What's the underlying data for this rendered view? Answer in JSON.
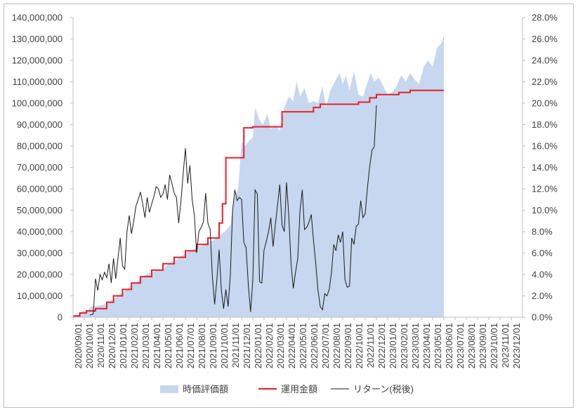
{
  "chart_data": {
    "type": "area+line",
    "title": "",
    "legend_position": "bottom",
    "gridlines": false,
    "left_axis": {
      "min": 0,
      "max": 140000000,
      "step": 10000000,
      "tick_labels": [
        "0",
        "10,000,000",
        "20,000,000",
        "30,000,000",
        "40,000,000",
        "50,000,000",
        "60,000,000",
        "70,000,000",
        "80,000,000",
        "90,000,000",
        "100,000,000",
        "110,000,000",
        "120,000,000",
        "130,000,000",
        "140,000,000"
      ]
    },
    "right_axis": {
      "min": 0,
      "max": 28,
      "step": 2,
      "unit": "%",
      "tick_labels": [
        "0.0%",
        "2.0%",
        "4.0%",
        "6.0%",
        "8.0%",
        "10.0%",
        "12.0%",
        "14.0%",
        "16.0%",
        "18.0%",
        "20.0%",
        "22.0%",
        "24.0%",
        "26.0%",
        "28.0%"
      ]
    },
    "x_axis": {
      "tick_labels": [
        "2020/09/01",
        "2020/10/01",
        "2020/11/01",
        "2020/12/01",
        "2021/01/01",
        "2021/02/01",
        "2021/03/01",
        "2021/04/01",
        "2021/05/01",
        "2021/06/01",
        "2021/07/01",
        "2021/08/01",
        "2021/09/01",
        "2021/10/01",
        "2021/11/01",
        "2021/12/01",
        "2022/01/01",
        "2022/02/01",
        "2022/03/01",
        "2022/04/01",
        "2022/05/01",
        "2022/06/01",
        "2022/07/01",
        "2022/08/01",
        "2022/09/01",
        "2022/10/01",
        "2022/11/01",
        "2022/12/01",
        "2023/01/01",
        "2023/02/01",
        "2023/03/01",
        "2023/04/01",
        "2023/05/01",
        "2023/06/01",
        "2023/07/01",
        "2023/08/01",
        "2023/09/01",
        "2023/10/01",
        "2023/11/01",
        "2023/12/01"
      ]
    },
    "colors": {
      "market_value": "#c6d7ef",
      "invested": "#e8202a",
      "return": "#1a1a1a",
      "axis": "#bfbfbf",
      "text": "#404040"
    },
    "series": [
      {
        "name": "時価評価額",
        "type": "area",
        "axis": "left",
        "points": [
          [
            0,
            1000000
          ],
          [
            0.5,
            1000000
          ],
          [
            0.9,
            3200000
          ],
          [
            1.3,
            3200000
          ],
          [
            1.6,
            5000000
          ],
          [
            2.2,
            5300000
          ],
          [
            2.8,
            6000000
          ],
          [
            3.2,
            7000000
          ],
          [
            3.6,
            8500000
          ],
          [
            4.0,
            10000000
          ],
          [
            4.4,
            11500000
          ],
          [
            4.8,
            13000000
          ],
          [
            5.2,
            15000000
          ],
          [
            5.6,
            16500000
          ],
          [
            6.0,
            18000000
          ],
          [
            6.5,
            20000000
          ],
          [
            7.0,
            21000000
          ],
          [
            7.5,
            22000000
          ],
          [
            8.0,
            22500000
          ],
          [
            8.5,
            25000000
          ],
          [
            9.0,
            26000000
          ],
          [
            9.5,
            28000000
          ],
          [
            10.0,
            30000000
          ],
          [
            10.5,
            31000000
          ],
          [
            11.0,
            33000000
          ],
          [
            11.5,
            33500000
          ],
          [
            12.0,
            35000000
          ],
          [
            12.5,
            36000000
          ],
          [
            13.0,
            38000000
          ],
          [
            13.5,
            40000000
          ],
          [
            14.0,
            43000000
          ],
          [
            14.3,
            55000000
          ],
          [
            14.7,
            60000000
          ],
          [
            15.0,
            82000000
          ],
          [
            15.3,
            80000000
          ],
          [
            15.6,
            82000000
          ],
          [
            16.0,
            84000000
          ],
          [
            16.2,
            98000000
          ],
          [
            16.6,
            92000000
          ],
          [
            16.9,
            90000000
          ],
          [
            17.3,
            95000000
          ],
          [
            17.6,
            88000000
          ],
          [
            18.0,
            90000000
          ],
          [
            18.4,
            87000000
          ],
          [
            18.8,
            98000000
          ],
          [
            19.2,
            103000000
          ],
          [
            19.6,
            101000000
          ],
          [
            19.9,
            110000000
          ],
          [
            20.2,
            103000000
          ],
          [
            20.6,
            107000000
          ],
          [
            21.0,
            100000000
          ],
          [
            21.4,
            101000000
          ],
          [
            21.8,
            100000000
          ],
          [
            22.2,
            108000000
          ],
          [
            22.5,
            98000000
          ],
          [
            22.9,
            106000000
          ],
          [
            23.3,
            110000000
          ],
          [
            23.7,
            114000000
          ],
          [
            24.0,
            109000000
          ],
          [
            24.3,
            113000000
          ],
          [
            24.6,
            106000000
          ],
          [
            25.0,
            115000000
          ],
          [
            25.4,
            104000000
          ],
          [
            25.8,
            103000000
          ],
          [
            26.1,
            108000000
          ],
          [
            26.5,
            114000000
          ],
          [
            26.8,
            110000000
          ],
          [
            27.2,
            112000000
          ],
          [
            27.6,
            108000000
          ],
          [
            28.0,
            104000000
          ],
          [
            28.4,
            105000000
          ],
          [
            28.8,
            108000000
          ],
          [
            29.2,
            113000000
          ],
          [
            29.6,
            110000000
          ],
          [
            30.0,
            114000000
          ],
          [
            30.4,
            111000000
          ],
          [
            30.8,
            109000000
          ],
          [
            31.2,
            117000000
          ],
          [
            31.6,
            120000000
          ],
          [
            32.0,
            117000000
          ],
          [
            32.4,
            126000000
          ],
          [
            32.8,
            128000000
          ],
          [
            33.0,
            132000000
          ]
        ]
      },
      {
        "name": "運用金額",
        "type": "step-line",
        "axis": "left",
        "points": [
          [
            0,
            600000
          ],
          [
            0.6,
            600000
          ],
          [
            0.6,
            2000000
          ],
          [
            1.2,
            2000000
          ],
          [
            1.2,
            3000000
          ],
          [
            1.8,
            3000000
          ],
          [
            2.0,
            3000000
          ],
          [
            2.0,
            4000000
          ],
          [
            2.5,
            4000000
          ],
          [
            3.0,
            4000000
          ],
          [
            3.0,
            7000000
          ],
          [
            3.6,
            7000000
          ],
          [
            3.6,
            10000000
          ],
          [
            4.4,
            10000000
          ],
          [
            4.4,
            13000000
          ],
          [
            5.2,
            13000000
          ],
          [
            5.2,
            16000000
          ],
          [
            6.0,
            16000000
          ],
          [
            6.0,
            19000000
          ],
          [
            7.0,
            19000000
          ],
          [
            7.0,
            22000000
          ],
          [
            8.0,
            22000000
          ],
          [
            8.0,
            25000000
          ],
          [
            9.0,
            25000000
          ],
          [
            9.0,
            28000000
          ],
          [
            10.0,
            28000000
          ],
          [
            10.0,
            31000000
          ],
          [
            11.0,
            31000000
          ],
          [
            11.0,
            34000000
          ],
          [
            12.0,
            34000000
          ],
          [
            12.0,
            37000000
          ],
          [
            13.0,
            37000000
          ],
          [
            13.0,
            44000000
          ],
          [
            13.3,
            44000000
          ],
          [
            13.3,
            53000000
          ],
          [
            13.6,
            53000000
          ],
          [
            13.6,
            74500000
          ],
          [
            14.4,
            74500000
          ],
          [
            14.4,
            74500000
          ],
          [
            15.2,
            74500000
          ],
          [
            15.2,
            88500000
          ],
          [
            16.0,
            88500000
          ],
          [
            16.0,
            89000000
          ],
          [
            18.6,
            89000000
          ],
          [
            18.6,
            96000000
          ],
          [
            21.4,
            96000000
          ],
          [
            21.4,
            98000000
          ],
          [
            22.0,
            98000000
          ],
          [
            22.0,
            99500000
          ],
          [
            25.4,
            99500000
          ],
          [
            25.4,
            100500000
          ],
          [
            26.4,
            100500000
          ],
          [
            26.4,
            102500000
          ],
          [
            27.0,
            102500000
          ],
          [
            27.0,
            104000000
          ],
          [
            29.0,
            104000000
          ],
          [
            29.0,
            105000000
          ],
          [
            30.0,
            105000000
          ],
          [
            30.0,
            106000000
          ],
          [
            33.0,
            106000000
          ]
        ]
      },
      {
        "name": "リターン(税後)",
        "type": "line",
        "axis": "right",
        "points": [
          [
            1.5,
            0.2
          ],
          [
            1.8,
            0.3
          ],
          [
            2.0,
            3.6
          ],
          [
            2.2,
            2.5
          ],
          [
            2.4,
            4.0
          ],
          [
            2.6,
            3.5
          ],
          [
            2.8,
            4.2
          ],
          [
            3.0,
            3.7
          ],
          [
            3.2,
            5.0
          ],
          [
            3.4,
            3.2
          ],
          [
            3.6,
            5.5
          ],
          [
            3.8,
            3.6
          ],
          [
            4.0,
            5.5
          ],
          [
            4.2,
            7.4
          ],
          [
            4.4,
            4.8
          ],
          [
            4.6,
            4.5
          ],
          [
            4.8,
            8.0
          ],
          [
            5.0,
            9.5
          ],
          [
            5.2,
            7.8
          ],
          [
            5.4,
            9.0
          ],
          [
            5.6,
            10.4
          ],
          [
            5.8,
            11.0
          ],
          [
            6.0,
            11.7
          ],
          [
            6.2,
            10.6
          ],
          [
            6.4,
            9.3
          ],
          [
            6.6,
            11.2
          ],
          [
            6.8,
            9.8
          ],
          [
            7.0,
            10.6
          ],
          [
            7.2,
            11.3
          ],
          [
            7.4,
            12.2
          ],
          [
            7.6,
            12.0
          ],
          [
            7.8,
            11.2
          ],
          [
            8.0,
            11.5
          ],
          [
            8.2,
            12.4
          ],
          [
            8.4,
            11.0
          ],
          [
            8.6,
            13.3
          ],
          [
            8.8,
            12.5
          ],
          [
            9.0,
            11.6
          ],
          [
            9.2,
            11.2
          ],
          [
            9.4,
            8.8
          ],
          [
            9.6,
            10.8
          ],
          [
            9.8,
            13.4
          ],
          [
            10.0,
            15.8
          ],
          [
            10.2,
            12.5
          ],
          [
            10.4,
            14.2
          ],
          [
            10.6,
            11.0
          ],
          [
            10.8,
            9.5
          ],
          [
            11.0,
            6.0
          ],
          [
            11.2,
            8.0
          ],
          [
            11.4,
            8.4
          ],
          [
            11.6,
            8.9
          ],
          [
            11.8,
            11.6
          ],
          [
            12.0,
            8.8
          ],
          [
            12.2,
            8.2
          ],
          [
            12.4,
            3.8
          ],
          [
            12.6,
            1.2
          ],
          [
            12.8,
            3.5
          ],
          [
            13.0,
            6.3
          ],
          [
            13.2,
            2.5
          ],
          [
            13.4,
            0.8
          ],
          [
            13.6,
            2.6
          ],
          [
            13.8,
            1.0
          ],
          [
            14.0,
            4.0
          ],
          [
            14.2,
            10.0
          ],
          [
            14.4,
            11.9
          ],
          [
            14.6,
            10.9
          ],
          [
            14.8,
            11.2
          ],
          [
            15.0,
            11.0
          ],
          [
            15.2,
            7.0
          ],
          [
            15.4,
            6.5
          ],
          [
            15.6,
            3.0
          ],
          [
            15.8,
            0.5
          ],
          [
            16.0,
            3.5
          ],
          [
            16.2,
            11.9
          ],
          [
            16.4,
            11.5
          ],
          [
            16.6,
            3.3
          ],
          [
            16.8,
            3.2
          ],
          [
            17.0,
            6.3
          ],
          [
            17.2,
            7.1
          ],
          [
            17.4,
            8.0
          ],
          [
            17.6,
            9.3
          ],
          [
            17.8,
            6.6
          ],
          [
            18.0,
            8.6
          ],
          [
            18.2,
            10.5
          ],
          [
            18.4,
            12.4
          ],
          [
            18.6,
            8.6
          ],
          [
            18.8,
            8.0
          ],
          [
            19.0,
            12.6
          ],
          [
            19.2,
            9.5
          ],
          [
            19.4,
            5.0
          ],
          [
            19.6,
            2.7
          ],
          [
            19.8,
            4.2
          ],
          [
            20.0,
            5.5
          ],
          [
            20.2,
            10.0
          ],
          [
            20.4,
            11.9
          ],
          [
            20.6,
            8.2
          ],
          [
            20.8,
            8.4
          ],
          [
            21.0,
            8.9
          ],
          [
            21.2,
            9.6
          ],
          [
            21.4,
            7.2
          ],
          [
            21.6,
            5.0
          ],
          [
            21.8,
            2.5
          ],
          [
            22.0,
            1.0
          ],
          [
            22.2,
            0.7
          ],
          [
            22.4,
            2.2
          ],
          [
            22.6,
            2.0
          ],
          [
            22.8,
            2.6
          ],
          [
            23.0,
            4.2
          ],
          [
            23.2,
            6.8
          ],
          [
            23.4,
            6.2
          ],
          [
            23.6,
            7.7
          ],
          [
            23.8,
            7.0
          ],
          [
            24.0,
            8.0
          ],
          [
            24.2,
            3.5
          ],
          [
            24.4,
            2.8
          ],
          [
            24.6,
            2.9
          ],
          [
            24.8,
            7.4
          ],
          [
            25.0,
            6.8
          ],
          [
            25.2,
            8.5
          ],
          [
            25.4,
            8.7
          ],
          [
            25.6,
            10.9
          ],
          [
            25.8,
            9.3
          ],
          [
            26.0,
            9.7
          ],
          [
            26.2,
            12.1
          ],
          [
            26.4,
            14.1
          ],
          [
            26.6,
            15.6
          ],
          [
            26.8,
            15.9
          ],
          [
            27.0,
            19.8
          ]
        ]
      }
    ]
  }
}
